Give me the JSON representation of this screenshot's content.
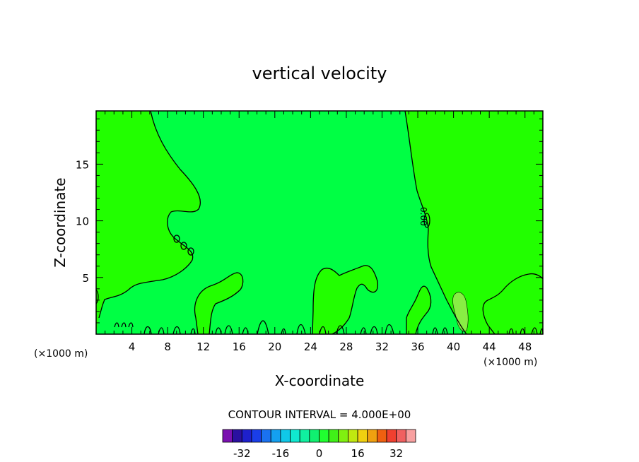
{
  "chart_data": {
    "type": "contour",
    "title": "vertical velocity",
    "xlabel": "X-coordinate",
    "ylabel": "Z-coordinate",
    "x_units": "(×1000 m)",
    "xlim": [
      0,
      50
    ],
    "ylim": [
      0,
      19.7
    ],
    "x_ticks": [
      4,
      8,
      12,
      16,
      20,
      24,
      28,
      32,
      36,
      40,
      44,
      48
    ],
    "x_tick_labels": [
      "4",
      "8",
      "12",
      "16",
      "20",
      "24",
      "28",
      "32",
      "36",
      "40",
      "44",
      "48"
    ],
    "y_ticks": [
      5,
      10,
      15
    ],
    "y_tick_labels": [
      "5",
      "10",
      "15"
    ],
    "contour_label": "0.00",
    "contour_interval_text": "CONTOUR INTERVAL = 4.000E+00",
    "colorbar": {
      "levels": [
        -36,
        -32,
        -28,
        -24,
        -20,
        -16,
        -12,
        -8,
        -4,
        0,
        4,
        8,
        12,
        16,
        20,
        24,
        28,
        32,
        36
      ],
      "colors": [
        "#7a10b0",
        "#2a10a0",
        "#1e20cc",
        "#1a3ee8",
        "#1a72f0",
        "#14a0f0",
        "#10c8e8",
        "#10e8d0",
        "#10f0a0",
        "#10f070",
        "#20ff30",
        "#40f018",
        "#80f010",
        "#c0e810",
        "#f0d010",
        "#f0a010",
        "#f06010",
        "#f04030",
        "#f06060",
        "#f8a0a0"
      ],
      "tick_labels": [
        "-32",
        "-16",
        "0",
        "16",
        "32"
      ],
      "ticks": [
        -32,
        -16,
        0,
        16,
        32
      ]
    },
    "regions": {
      "positive_color": "#22ff00",
      "neutral_color": "#00ff44",
      "strong_positive_color": "#88ee44"
    }
  }
}
